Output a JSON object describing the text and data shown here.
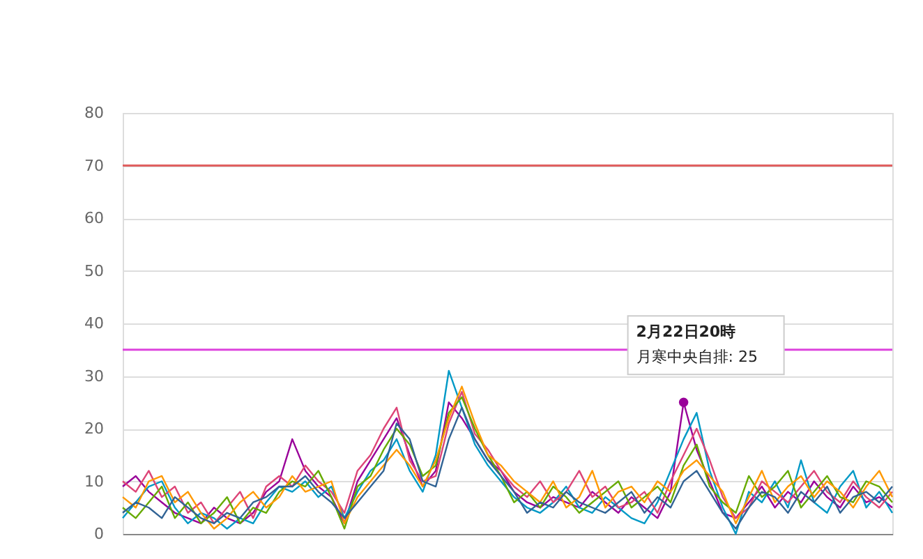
{
  "chart_data": {
    "type": "line",
    "categories": [
      null,
      null,
      null,
      null,
      null,
      null,
      null,
      null,
      null,
      null,
      null,
      null,
      null,
      null,
      null,
      null,
      null,
      null,
      null,
      null,
      null,
      null,
      null,
      null,
      null,
      null,
      null,
      null,
      null,
      null,
      null,
      null,
      null,
      null,
      null,
      null,
      null,
      null,
      null,
      null,
      null,
      null,
      null,
      null,
      null,
      null,
      null,
      null,
      null,
      null,
      null,
      null,
      null,
      null,
      null,
      null,
      null,
      null,
      null,
      null
    ],
    "series": [
      {
        "color": "#990099",
        "values": [
          9,
          11,
          8,
          6,
          4,
          3,
          2,
          5,
          3,
          2,
          4,
          8,
          10,
          18,
          12,
          9,
          7,
          2,
          10,
          14,
          18,
          22,
          15,
          9,
          12,
          25,
          22,
          18,
          14,
          12,
          8,
          6,
          5,
          7,
          6,
          5,
          8,
          6,
          4,
          7,
          5,
          3,
          8,
          25,
          16,
          10,
          4,
          3,
          6,
          9,
          5,
          8,
          6,
          10,
          7,
          5,
          9,
          6,
          7,
          5
        ]
      },
      {
        "color": "#0099c6",
        "values": [
          3,
          6,
          9,
          10,
          5,
          2,
          4,
          3,
          1,
          3,
          2,
          6,
          9,
          8,
          10,
          7,
          9,
          3,
          8,
          12,
          14,
          18,
          12,
          8,
          15,
          31,
          24,
          17,
          13,
          10,
          7,
          5,
          4,
          6,
          9,
          5,
          4,
          7,
          5,
          3,
          2,
          6,
          12,
          18,
          23,
          12,
          5,
          0,
          8,
          6,
          10,
          5,
          14,
          6,
          4,
          9,
          12,
          5,
          8,
          4
        ]
      },
      {
        "color": "#dd4477",
        "values": [
          10,
          8,
          12,
          7,
          9,
          4,
          6,
          2,
          5,
          8,
          3,
          9,
          11,
          9,
          13,
          10,
          8,
          4,
          12,
          15,
          20,
          24,
          14,
          10,
          11,
          21,
          27,
          19,
          16,
          12,
          9,
          7,
          10,
          6,
          8,
          12,
          7,
          9,
          5,
          6,
          8,
          4,
          10,
          15,
          20,
          14,
          7,
          3,
          5,
          10,
          8,
          6,
          9,
          12,
          8,
          6,
          10,
          7,
          5,
          8
        ]
      },
      {
        "color": "#66aa00",
        "values": [
          5,
          3,
          6,
          9,
          3,
          6,
          2,
          4,
          7,
          2,
          5,
          4,
          8,
          10,
          9,
          12,
          7,
          1,
          9,
          11,
          16,
          20,
          17,
          11,
          13,
          23,
          26,
          20,
          15,
          11,
          6,
          8,
          5,
          9,
          7,
          4,
          6,
          8,
          10,
          5,
          7,
          9,
          6,
          13,
          17,
          9,
          6,
          4,
          11,
          7,
          9,
          12,
          5,
          8,
          11,
          7,
          6,
          10,
          9,
          6
        ]
      },
      {
        "color": "#ff9900",
        "values": [
          7,
          5,
          10,
          11,
          6,
          8,
          4,
          1,
          3,
          6,
          8,
          5,
          7,
          11,
          8,
          9,
          10,
          2,
          7,
          10,
          13,
          16,
          13,
          9,
          14,
          22,
          28,
          21,
          15,
          13,
          10,
          8,
          6,
          10,
          5,
          7,
          12,
          5,
          8,
          9,
          6,
          10,
          8,
          12,
          14,
          11,
          8,
          2,
          7,
          12,
          6,
          9,
          11,
          7,
          10,
          8,
          5,
          9,
          12,
          7
        ]
      },
      {
        "color": "#316395",
        "values": [
          4,
          6,
          5,
          3,
          7,
          5,
          3,
          2,
          4,
          3,
          6,
          7,
          9,
          9,
          11,
          8,
          6,
          3,
          6,
          9,
          12,
          21,
          18,
          10,
          9,
          18,
          24,
          18,
          14,
          11,
          8,
          4,
          6,
          5,
          8,
          6,
          5,
          4,
          6,
          8,
          4,
          7,
          5,
          10,
          12,
          8,
          4,
          1,
          5,
          8,
          7,
          4,
          8,
          6,
          9,
          4,
          7,
          8,
          6,
          9
        ]
      },
      {
        "type": "scatter",
        "color": "#990099",
        "marker": "circle",
        "values": [
          null,
          null,
          null,
          null,
          null,
          null,
          null,
          null,
          null,
          null,
          null,
          null,
          null,
          null,
          null,
          null,
          null,
          null,
          null,
          null,
          null,
          null,
          null,
          null,
          null,
          null,
          null,
          null,
          null,
          null,
          null,
          null,
          null,
          null,
          null,
          null,
          null,
          null,
          null,
          null,
          null,
          null,
          null,
          25,
          null,
          null,
          null,
          null,
          null,
          null,
          null,
          null,
          null,
          null,
          null,
          null,
          null,
          null,
          null,
          null
        ]
      }
    ],
    "ylim": [
      0,
      80
    ],
    "yticks": [
      0,
      10,
      20,
      30,
      40,
      50,
      60,
      70,
      80
    ],
    "grid": "y",
    "legend": false,
    "tick_labels": "y",
    "ref_lines": [
      {
        "axis": "y",
        "value": 70,
        "color": "#e06060"
      },
      {
        "axis": "y",
        "value": 35,
        "color": "#dd44dd"
      }
    ],
    "annotations": [
      "2月22日20時",
      "月寒中央自排: 25"
    ]
  }
}
